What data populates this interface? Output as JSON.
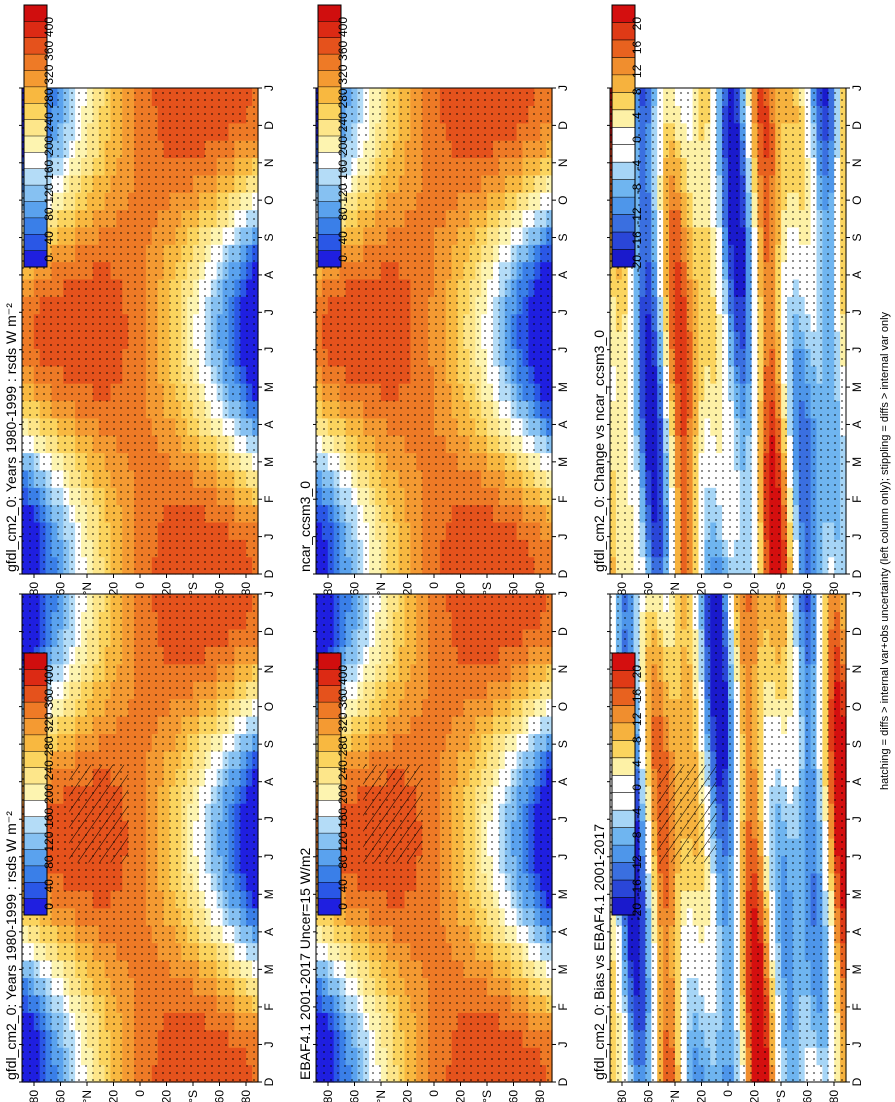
{
  "footer_note": "hatching = diffs > internal var+obs uncertainty (left column only); stippling = diffs > internal var only",
  "months": [
    "D",
    "J",
    "F",
    "M",
    "A",
    "M",
    "J",
    "J",
    "A",
    "S",
    "O",
    "N",
    "D",
    "J"
  ],
  "lat_ticks": [
    "80",
    "60",
    "°N",
    "20",
    "0",
    "20",
    "°S",
    "60",
    "80"
  ],
  "colors": {
    "abs_scale": [
      "#1f1fe0",
      "#2a57e6",
      "#3a7fe8",
      "#5aa2ee",
      "#86c1f2",
      "#b4dcf7",
      "#ffffff",
      "#fdf4b0",
      "#fde68a",
      "#fbd45e",
      "#f8b840",
      "#f49a32",
      "#ee7a26",
      "#e5521c",
      "#dc2a14",
      "#d00e0e"
    ],
    "diff_scale": [
      "#1a1acc",
      "#2a46d8",
      "#3a6fe0",
      "#4e96ea",
      "#6fb5f0",
      "#a6d5f6",
      "#ffffff",
      "#ffffff",
      "#fdf1a6",
      "#fbd45e",
      "#f6b23e",
      "#f08e2e",
      "#e8621f",
      "#df3a16",
      "#d40f0f"
    ]
  },
  "chart_data": [
    {
      "type": "heatmap",
      "title": "gfdl_cm2_0: Years 1980-1999 : rsds W m⁻²",
      "colorbar_ticks": [
        "400",
        "360",
        "320",
        "280",
        "240",
        "200",
        "160",
        "120",
        "80",
        "40",
        "0"
      ],
      "panel": "left-top"
    },
    {
      "type": "heatmap",
      "title": "EBAF4.1 2001-2017 Uncer=15 W/m2",
      "colorbar_ticks": [
        "400",
        "360",
        "320",
        "280",
        "240",
        "200",
        "160",
        "120",
        "80",
        "40",
        "0"
      ],
      "panel": "left-middle"
    },
    {
      "type": "heatmap",
      "title": "gfdl_cm2_0: Bias vs EBAF4.1 2001-2017",
      "colorbar_ticks": [
        "20",
        "16",
        "12",
        "8",
        "4",
        "0",
        "-4",
        "-8",
        "-12",
        "-16",
        "-20"
      ],
      "panel": "left-bottom"
    },
    {
      "type": "heatmap",
      "title": "gfdl_cm2_0: Years 1980-1999 : rsds W m⁻²",
      "colorbar_ticks": [
        "400",
        "360",
        "320",
        "280",
        "240",
        "200",
        "160",
        "120",
        "80",
        "40",
        "0"
      ],
      "panel": "right-top"
    },
    {
      "type": "heatmap",
      "title": "ncar_ccsm3_0",
      "colorbar_ticks": [
        "400",
        "360",
        "320",
        "280",
        "240",
        "200",
        "160",
        "120",
        "80",
        "40",
        "0"
      ],
      "panel": "right-middle"
    },
    {
      "type": "heatmap",
      "title": "gfdl_cm2_0: Change vs ncar_ccsm3_0",
      "colorbar_ticks": [
        "20",
        "16",
        "12",
        "8",
        "4",
        "0",
        "-4",
        "-8",
        "-12",
        "-16",
        "-20"
      ],
      "panel": "right-bottom"
    }
  ]
}
